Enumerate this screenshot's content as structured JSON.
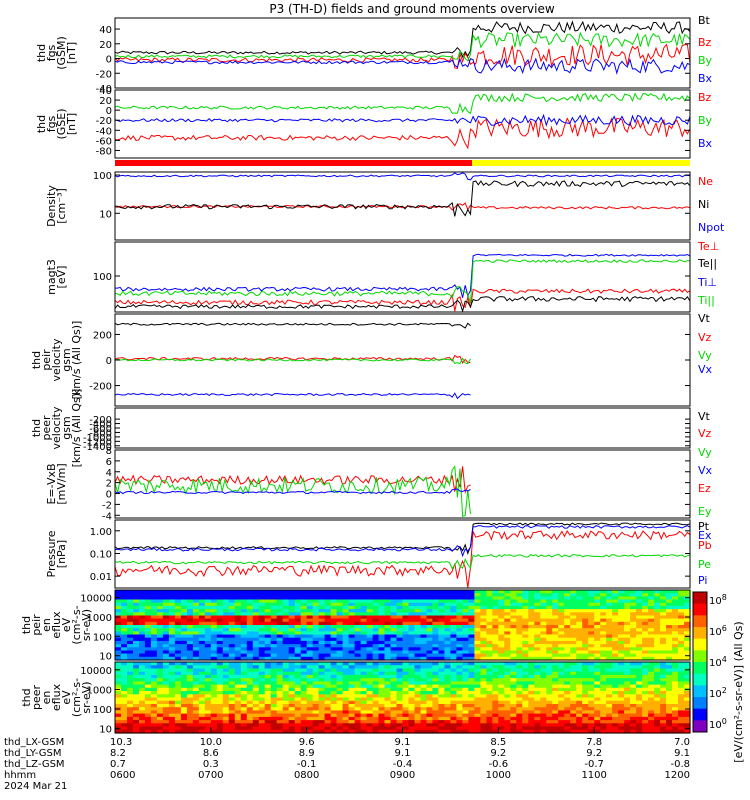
{
  "title": "P3 (TH-D) fields and ground moments overview",
  "colors": {
    "black": "#000000",
    "red": "#ff0000",
    "green": "#00d800",
    "blue": "#0000ff",
    "yellow": "#ffff00"
  },
  "chart_data": [
    {
      "type": "line",
      "ylabel": [
        "thd",
        "fgs",
        "(GSM)",
        "[nT]"
      ],
      "ylim": [
        -40,
        55
      ],
      "yticks": [
        -40,
        -20,
        0,
        20,
        40
      ],
      "series": [
        {
          "name": "Bt",
          "color": "#000000",
          "pre": 8,
          "noise": 2,
          "post": 42,
          "postnoise": 8
        },
        {
          "name": "Bz",
          "color": "#ff0000",
          "pre": -2,
          "noise": 3,
          "post": 5,
          "postnoise": 15
        },
        {
          "name": "By",
          "color": "#00d800",
          "pre": 3,
          "noise": 2,
          "post": 25,
          "postnoise": 10
        },
        {
          "name": "Bx",
          "color": "#0000ff",
          "pre": -5,
          "noise": 2,
          "post": -10,
          "postnoise": 10
        }
      ]
    },
    {
      "type": "line",
      "ylabel": [
        "thd",
        "fgs",
        "(GSE)",
        "[nT]"
      ],
      "ylim": [
        -95,
        40
      ],
      "yticks": [
        -80,
        -60,
        -40,
        -20,
        0,
        20,
        40
      ],
      "series": [
        {
          "name": "Bz",
          "color": "#ff0000",
          "pre": -55,
          "noise": 5,
          "post": -35,
          "postnoise": 20
        },
        {
          "name": "By",
          "color": "#00d800",
          "pre": 5,
          "noise": 3,
          "post": 25,
          "postnoise": 8
        },
        {
          "name": "Bx",
          "color": "#0000ff",
          "pre": -20,
          "noise": 3,
          "post": -20,
          "postnoise": 10
        }
      ]
    },
    {
      "type": "line",
      "ylabel": [
        "Density",
        "[cm^-3]"
      ],
      "ylim": [
        2,
        120
      ],
      "log": true,
      "yticks": [
        10,
        100
      ],
      "series": [
        {
          "name": "Ne",
          "color": "#ff0000",
          "pre": 15,
          "noise": 1,
          "post": 14,
          "postnoise": 1
        },
        {
          "name": "Ni",
          "color": "#000000",
          "pre": 15,
          "noise": 2,
          "post": 60,
          "postnoise": 10
        },
        {
          "name": "Npot",
          "color": "#0000ff",
          "pre": 95,
          "noise": 5,
          "post": 95,
          "postnoise": 5
        }
      ]
    },
    {
      "type": "line",
      "ylabel": [
        "magt3",
        "[eV]"
      ],
      "ylim": [
        15,
        600
      ],
      "log": true,
      "yticks": [
        100
      ],
      "series": [
        {
          "name": "Te⊥",
          "color": "#ff0000",
          "pre": 25,
          "noise": 3,
          "post": 45,
          "postnoise": 5
        },
        {
          "name": "Te||",
          "color": "#000000",
          "pre": 20,
          "noise": 2,
          "post": 30,
          "postnoise": 4
        },
        {
          "name": "Ti⊥",
          "color": "#0000ff",
          "pre": 50,
          "noise": 5,
          "post": 300,
          "postnoise": 15
        },
        {
          "name": "Ti||",
          "color": "#00d800",
          "pre": 40,
          "noise": 5,
          "post": 220,
          "postnoise": 15
        }
      ]
    },
    {
      "type": "line",
      "ylabel": [
        "thd",
        "peir",
        "velocity",
        "gsm",
        "[km/s (All Qs)]"
      ],
      "ylim": [
        -360,
        360
      ],
      "yticks": [
        -200,
        0,
        200
      ],
      "series": [
        {
          "name": "Vt",
          "color": "#000000",
          "pre": 280,
          "noise": 8,
          "post": null,
          "postnoise": 0
        },
        {
          "name": "Vz",
          "color": "#ff0000",
          "pre": 10,
          "noise": 10,
          "post": null,
          "postnoise": 0
        },
        {
          "name": "Vy",
          "color": "#00d800",
          "pre": 0,
          "noise": 8,
          "post": null,
          "postnoise": 0
        },
        {
          "name": "Vx",
          "color": "#0000ff",
          "pre": -270,
          "noise": 8,
          "post": null,
          "postnoise": 0
        }
      ]
    },
    {
      "type": "line",
      "ylabel": [
        "thd",
        "peer",
        "velocity",
        "gsm",
        "[km/s (All Qs)]"
      ],
      "ylim": [
        -1500,
        300
      ],
      "yticks": [
        -1400,
        -1200,
        -1000,
        -800,
        -600,
        -400,
        -200
      ],
      "series": [
        {
          "name": "Vt",
          "color": "#000000"
        },
        {
          "name": "Vz",
          "color": "#ff0000"
        },
        {
          "name": "Vy",
          "color": "#00d800"
        },
        {
          "name": "Vx",
          "color": "#0000ff"
        }
      ]
    },
    {
      "type": "line",
      "ylabel": [
        "E=-VxB",
        "[mV/m]"
      ],
      "ylim": [
        -4.5,
        8
      ],
      "yticks": [
        -4,
        -2,
        0,
        2,
        4,
        6,
        8
      ],
      "series": [
        {
          "name": "Ez",
          "color": "#ff0000",
          "pre": 2.5,
          "noise": 0.8,
          "post": null,
          "postnoise": 0
        },
        {
          "name": "Ey",
          "color": "#00d800",
          "pre": 1.5,
          "noise": 1.5,
          "post": null,
          "postnoise": 0
        },
        {
          "name": "Ex",
          "color": "#0000ff",
          "pre": 0.2,
          "noise": 0.2,
          "post": null,
          "postnoise": 0
        }
      ]
    },
    {
      "type": "line",
      "ylabel": [
        "Pressure",
        "[nPa]"
      ],
      "ylim": [
        0.003,
        3
      ],
      "log": true,
      "yticks": [
        0.01,
        0.1,
        1
      ],
      "ytick_labels": [
        "0.01",
        "0.10",
        "1.00"
      ],
      "series": [
        {
          "name": "Pt",
          "color": "#000000",
          "pre": 0.18,
          "noise": 0.02,
          "post": 2.0,
          "postnoise": 0.2
        },
        {
          "name": "Pb",
          "color": "#ff0000",
          "pre": 0.02,
          "noise": 0.01,
          "post": 0.7,
          "postnoise": 0.3
        },
        {
          "name": "Pe",
          "color": "#00d800",
          "pre": 0.04,
          "noise": 0.005,
          "post": 0.08,
          "postnoise": 0.01
        },
        {
          "name": "Pi",
          "color": "#0000ff",
          "pre": 0.15,
          "noise": 0.02,
          "post": 1.5,
          "postnoise": 0.2
        }
      ]
    },
    {
      "type": "heatmap",
      "ylabel": [
        "thd",
        "peir",
        "en",
        "eflux",
        "eV",
        "(cm^2-s-",
        "sr-eV)"
      ],
      "log": true,
      "ylim": [
        6,
        25000
      ],
      "yticks": [
        10,
        100,
        1000,
        10000
      ],
      "ytick_labels": [
        "10",
        "100",
        "1000",
        "10000"
      ]
    },
    {
      "type": "heatmap",
      "ylabel": [
        "thd",
        "peer",
        "en",
        "eflux",
        "eV",
        "(cm^2-s-",
        "sr-eV)"
      ],
      "log": true,
      "ylim": [
        6,
        25000
      ],
      "yticks": [
        10,
        100,
        1000,
        10000
      ],
      "ytick_labels": [
        "10",
        "100",
        "1000",
        "10000"
      ]
    }
  ],
  "colorbar": {
    "ticks": [
      "10^0",
      "10^2",
      "10^4",
      "10^6",
      "10^8"
    ],
    "label": "[eV/(cm^2-s-sr-eV)] (All Qs)"
  },
  "xaxis": {
    "row_labels": [
      "thd_LX-GSM",
      "thd_LY-GSM",
      "thd_LZ-GSM",
      "hhmm",
      "2024 Mar 21"
    ],
    "columns": [
      [
        "10.3",
        "10.0",
        "9.6",
        "9.1",
        "8.5",
        "7.8",
        "7.0"
      ],
      [
        "8.2",
        "8.6",
        "8.9",
        "9.1",
        "9.2",
        "9.2",
        "9.1"
      ],
      [
        "0.7",
        "0.3",
        "-0.1",
        "-0.4",
        "-0.6",
        "-0.7",
        "-0.8"
      ],
      [
        "0600",
        "0700",
        "0800",
        "0900",
        "1000",
        "1100",
        "1200"
      ]
    ]
  }
}
